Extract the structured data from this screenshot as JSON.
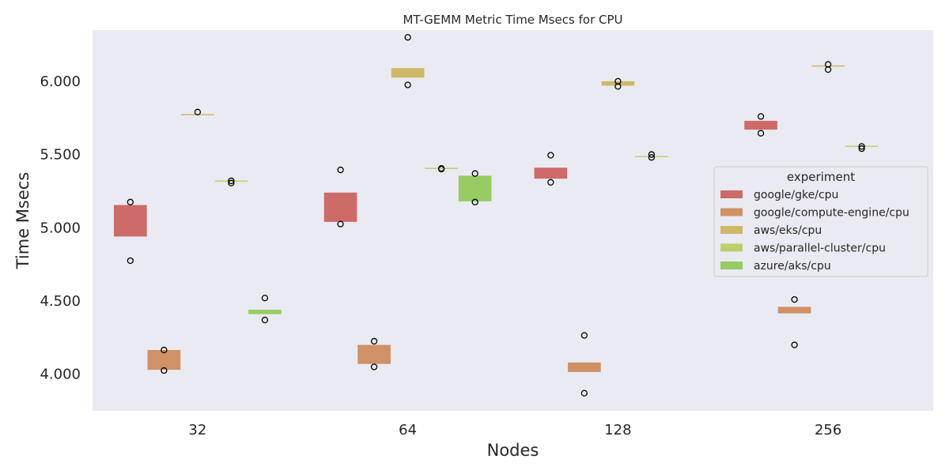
{
  "chart_data": {
    "type": "box",
    "title": "MT-GEMM Metric Time Msecs for CPU",
    "xlabel": "Nodes",
    "ylabel": "Time Msecs",
    "categories": [
      "32",
      "64",
      "128",
      "256"
    ],
    "ylim": [
      3.75,
      6.35
    ],
    "yticks": [
      4.0,
      4.5,
      5.0,
      5.5,
      6.0
    ],
    "ytick_labels": [
      "4.000",
      "4.500",
      "5.000",
      "5.500",
      "6.000"
    ],
    "grid": false,
    "legend": {
      "title": "experiment",
      "placement": "center-right"
    },
    "series": [
      {
        "name": "google/gke/cpu",
        "color": "#cd6b68",
        "boxes": [
          {
            "category": "32",
            "q1": 4.94,
            "q3": 5.155,
            "fliers": [
              5.175,
              4.775
            ]
          },
          {
            "category": "64",
            "q1": 5.04,
            "q3": 5.24,
            "fliers": [
              5.395,
              5.025
            ]
          },
          {
            "category": "128",
            "q1": 5.335,
            "q3": 5.41,
            "fliers": [
              5.495,
              5.31
            ]
          },
          {
            "category": "256",
            "q1": 5.67,
            "q3": 5.73,
            "fliers": [
              5.76,
              5.645
            ]
          }
        ]
      },
      {
        "name": "google/compute-engine/cpu",
        "color": "#d09166",
        "boxes": [
          {
            "category": "32",
            "q1": 4.03,
            "q3": 4.165,
            "fliers": [
              4.165,
              4.025
            ]
          },
          {
            "category": "64",
            "q1": 4.07,
            "q3": 4.2,
            "fliers": [
              4.225,
              4.05
            ]
          },
          {
            "category": "128",
            "q1": 4.015,
            "q3": 4.08,
            "fliers": [
              4.265,
              3.87
            ]
          },
          {
            "category": "256",
            "q1": 4.415,
            "q3": 4.46,
            "fliers": [
              4.51,
              4.2
            ]
          }
        ]
      },
      {
        "name": "aws/eks/cpu",
        "color": "#ceb866",
        "boxes": [
          {
            "category": "32",
            "q1": 5.765,
            "q3": 5.772,
            "fliers": [
              5.79
            ]
          },
          {
            "category": "64",
            "q1": 6.025,
            "q3": 6.09,
            "fliers": [
              6.3,
              5.975
            ]
          },
          {
            "category": "128",
            "q1": 5.97,
            "q3": 6.0,
            "fliers": [
              6.0,
              5.965
            ]
          },
          {
            "category": "256",
            "q1": 6.1,
            "q3": 6.104,
            "fliers": [
              6.115,
              6.08
            ]
          }
        ]
      },
      {
        "name": "aws/parallel-cluster/cpu",
        "color": "#bccf69",
        "boxes": [
          {
            "category": "32",
            "q1": 5.312,
            "q3": 5.318,
            "fliers": [
              5.32,
              5.305
            ]
          },
          {
            "category": "64",
            "q1": 5.4,
            "q3": 5.405,
            "fliers": [
              5.405,
              5.4
            ]
          },
          {
            "category": "128",
            "q1": 5.48,
            "q3": 5.486,
            "fliers": [
              5.5,
              5.48
            ]
          },
          {
            "category": "256",
            "q1": 5.55,
            "q3": 5.556,
            "fliers": [
              5.555,
              5.54
            ]
          }
        ]
      },
      {
        "name": "azure/aks/cpu",
        "color": "#96cc62",
        "boxes": [
          {
            "category": "32",
            "q1": 4.41,
            "q3": 4.44,
            "fliers": [
              4.52,
              4.37
            ]
          },
          {
            "category": "64",
            "q1": 5.18,
            "q3": 5.355,
            "fliers": [
              5.37,
              5.175
            ]
          }
        ]
      }
    ]
  }
}
